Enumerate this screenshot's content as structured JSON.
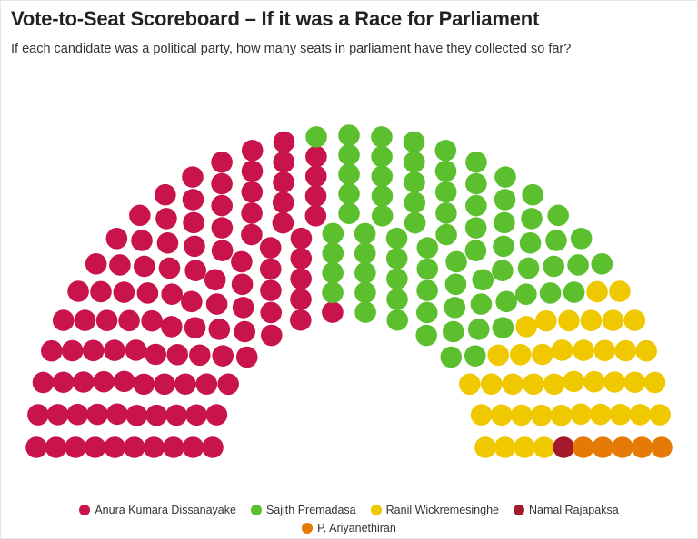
{
  "title": "Vote-to-Seat Scoreboard – If it was a Race for Parliament",
  "subtitle": "If each candidate was a political party, how many seats in parliament have they collected so far?",
  "chart_data": {
    "type": "parliament",
    "title": "Vote-to-Seat Scoreboard – If it was a Race for Parliament",
    "subtitle": "If each candidate was a political party, how many seats in parliament have they collected so far?",
    "total_seats": 225,
    "series": [
      {
        "name": "Anura Kumara Dissanayake",
        "seats": 105,
        "color": "#c8144b"
      },
      {
        "name": "Sajith Premadasa",
        "seats": 74,
        "color": "#5cc02e"
      },
      {
        "name": "Ranil Wickremesinghe",
        "seats": 40,
        "color": "#f0c800"
      },
      {
        "name": "Namal Rajapaksa",
        "seats": 1,
        "color": "#a31a2b"
      },
      {
        "name": "P. Ariyanethiran",
        "seats": 5,
        "color": "#e57b06"
      }
    ],
    "legend_position": "bottom"
  },
  "legend": {
    "row1": [
      {
        "label": "Anura Kumara Dissanayake",
        "color": "#c8144b"
      },
      {
        "label": "Sajith Premadasa",
        "color": "#5cc02e"
      },
      {
        "label": "Ranil Wickremesinghe",
        "color": "#f0c800"
      },
      {
        "label": "Namal Rajapaksa",
        "color": "#a31a2b"
      }
    ],
    "row2": [
      {
        "label": "P. Ariyanethiran",
        "color": "#e57b06"
      }
    ]
  }
}
